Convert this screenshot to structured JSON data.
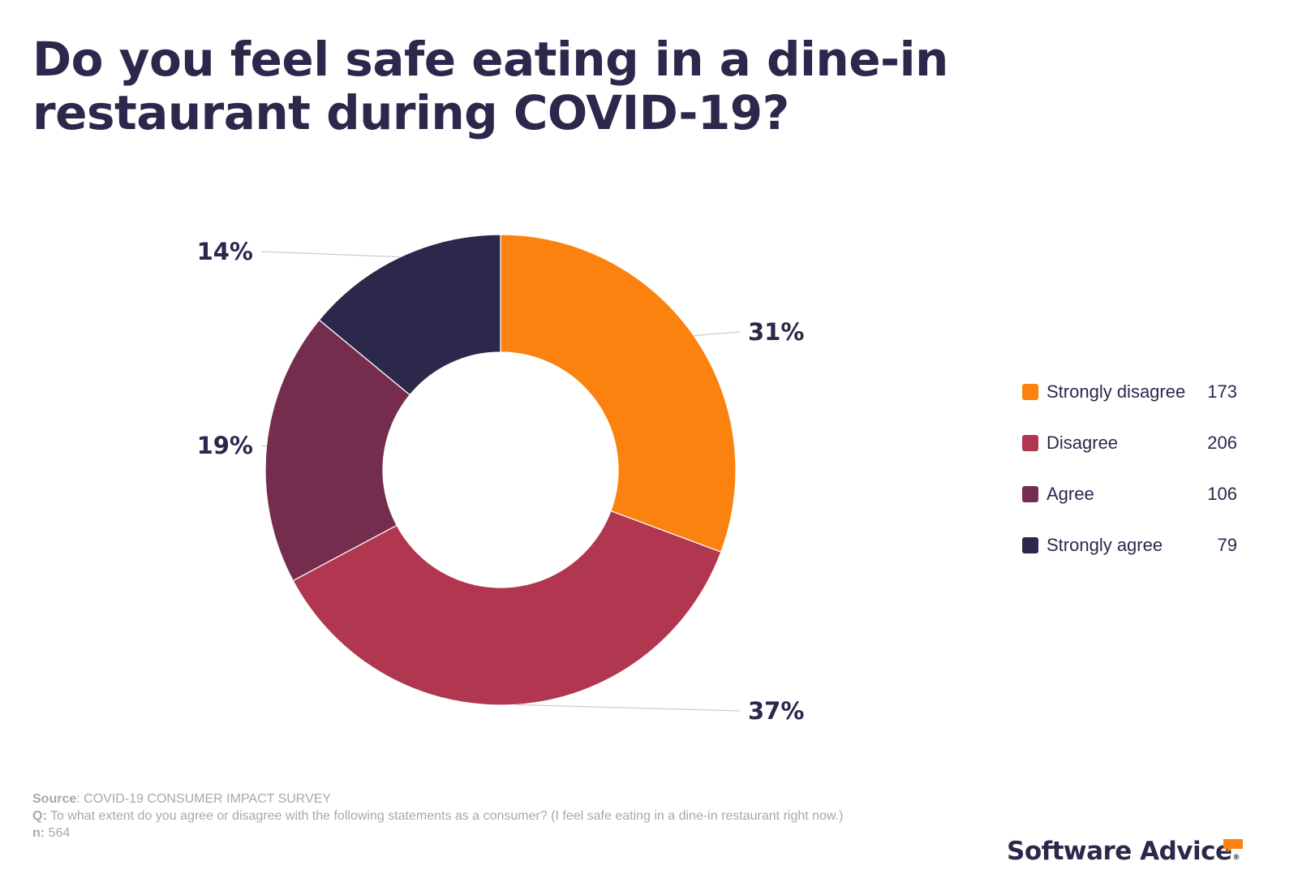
{
  "title": "Do you feel safe eating in a dine-in restaurant during COVID-19?",
  "chart_data": {
    "type": "pie",
    "variant": "donut",
    "title": "Do you feel safe eating in a dine-in restaurant during COVID-19?",
    "categories": [
      "Strongly disagree",
      "Disagree",
      "Agree",
      "Strongly agree"
    ],
    "values": [
      173,
      206,
      106,
      79
    ],
    "percent_labels": [
      "31%",
      "37%",
      "19%",
      "14%"
    ],
    "colors": [
      "#fb820f",
      "#b1364f",
      "#752d4e",
      "#2c284c"
    ],
    "total": 564,
    "legend_position": "right",
    "start_angle": "12 o'clock",
    "direction": "clockwise"
  },
  "legend": {
    "items": [
      {
        "label": "Strongly disagree",
        "value": "173",
        "color": "#fb820f"
      },
      {
        "label": "Disagree",
        "value": "206",
        "color": "#b1364f"
      },
      {
        "label": "Agree",
        "value": "106",
        "color": "#752d4e"
      },
      {
        "label": "Strongly agree",
        "value": "79",
        "color": "#2c284c"
      }
    ]
  },
  "footer": {
    "source_label": "Source",
    "source_text": ": COVID-19 CONSUMER IMPACT SURVEY",
    "q_label": "Q:",
    "q_text": " To what extent do you agree or disagree with the following statements as a consumer? (I feel safe eating in a dine-in restaurant right now.)",
    "n_label": "n:",
    "n_text": " 564"
  },
  "logo": {
    "text": "Software Advice",
    "reg": "®",
    "accent": "#fb820f"
  }
}
